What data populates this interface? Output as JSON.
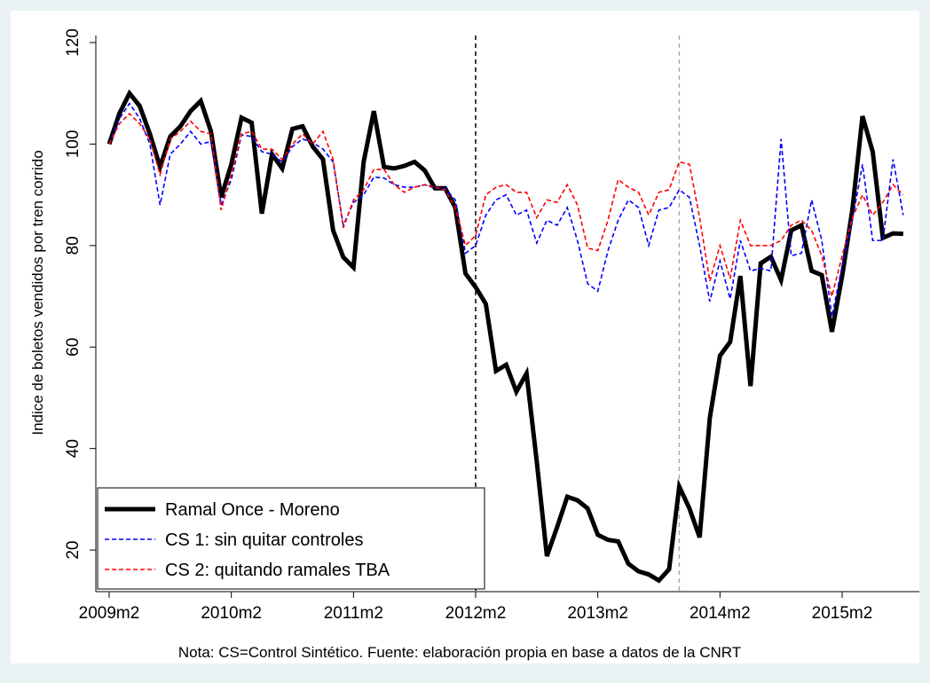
{
  "chart_data": {
    "type": "line",
    "y_label": "Indice de boletos vendidos por tren corrido",
    "note": "Nota: CS=Control Sintético. Fuente: elaboración propia en base a datos de la CNRT",
    "categories": [
      "2009m2",
      null,
      null,
      null,
      null,
      null,
      null,
      null,
      null,
      null,
      null,
      null,
      "2010m2",
      null,
      null,
      null,
      null,
      null,
      null,
      null,
      null,
      null,
      null,
      null,
      "2011m2",
      null,
      null,
      null,
      null,
      null,
      null,
      null,
      null,
      null,
      null,
      null,
      "2012m2",
      null,
      null,
      null,
      null,
      null,
      null,
      null,
      null,
      null,
      null,
      null,
      "2013m2",
      null,
      null,
      null,
      null,
      null,
      null,
      null,
      null,
      null,
      null,
      null,
      "2014m2",
      null,
      null,
      null,
      null,
      null,
      null,
      null,
      null,
      null,
      null,
      null,
      "2015m2",
      null,
      null,
      null,
      null,
      null,
      null
    ],
    "series": [
      {
        "name": "Ramal Once - Moreno",
        "color": "#000000",
        "dashed": false,
        "values": [
          100,
          106,
          110,
          107.5,
          102,
          95.5,
          101.5,
          103.5,
          106.5,
          108.5,
          102.5,
          89.5,
          96,
          105.2,
          104.2,
          86.3,
          98,
          95.2,
          103,
          103.5,
          99.5,
          97,
          83,
          77.7,
          75.7,
          96.5,
          106.5,
          95.5,
          95.2,
          95.7,
          96.5,
          94.8,
          91.3,
          91.3,
          87.5,
          74.5,
          71.8,
          68.5,
          55.3,
          56.5,
          51.2,
          54.8,
          37.5,
          18.8,
          24.5,
          30.5,
          29.8,
          28.2,
          23,
          22,
          21.7,
          17.3,
          15.8,
          15.2,
          14,
          16.2,
          32.5,
          28.2,
          22.5,
          46,
          58.3,
          61,
          74,
          52.3,
          76.5,
          77.8,
          73.2,
          83,
          84,
          75,
          74.2,
          63,
          74,
          87,
          105.5,
          98.5,
          81.5,
          82.4,
          82.3
        ]
      },
      {
        "name": "CS 1: sin quitar controles",
        "color": "#0000ff",
        "dashed": true,
        "values": [
          100,
          105,
          108,
          105,
          100,
          88,
          98,
          100,
          102.5,
          100,
          100.5,
          88,
          93,
          101.8,
          101.5,
          98.5,
          98,
          96.5,
          99.5,
          101,
          100.3,
          99,
          96.5,
          84,
          88.5,
          90,
          93.5,
          93.3,
          92,
          91.5,
          91.5,
          92,
          91.3,
          91.3,
          89,
          78.5,
          80,
          86,
          89,
          90,
          86,
          87,
          80.5,
          85,
          84,
          87.5,
          81,
          72.5,
          71,
          79,
          85,
          89,
          87.5,
          80,
          87,
          87.5,
          91,
          89.5,
          80,
          69,
          77,
          69.5,
          81,
          75,
          75.5,
          75,
          101,
          78,
          78.5,
          89,
          81,
          66,
          76,
          85,
          96,
          81,
          81,
          97,
          86
        ]
      },
      {
        "name": "CS 2: quitando ramales TBA",
        "color": "#ff0000",
        "dashed": true,
        "values": [
          100,
          104,
          106,
          104,
          101,
          94,
          101,
          102.5,
          104.5,
          102.5,
          102,
          87,
          94,
          102,
          102.5,
          99,
          99,
          97,
          100,
          102,
          100,
          102.5,
          97,
          83.5,
          89,
          91,
          95,
          95,
          92,
          90.5,
          91.5,
          92,
          91.5,
          91,
          87.5,
          80,
          82,
          90,
          91.5,
          92,
          90.5,
          90.5,
          85.5,
          89,
          88.5,
          92,
          88,
          79.5,
          79,
          85,
          93,
          91.5,
          90.5,
          86,
          90.5,
          91,
          96.5,
          96,
          85.5,
          73,
          80,
          73.5,
          85,
          80,
          80,
          80,
          81,
          84,
          85,
          83,
          78,
          70,
          78,
          85.5,
          90,
          86,
          88.5,
          92,
          90
        ]
      }
    ],
    "vlines": [
      {
        "at": 36,
        "color": "#000000"
      },
      {
        "at": 56,
        "color": "#aaaaaa"
      }
    ],
    "ylim": [
      11.8,
      121.4
    ],
    "yticks": [
      20,
      40,
      60,
      80,
      100,
      120
    ],
    "legend": "bottom-left"
  }
}
